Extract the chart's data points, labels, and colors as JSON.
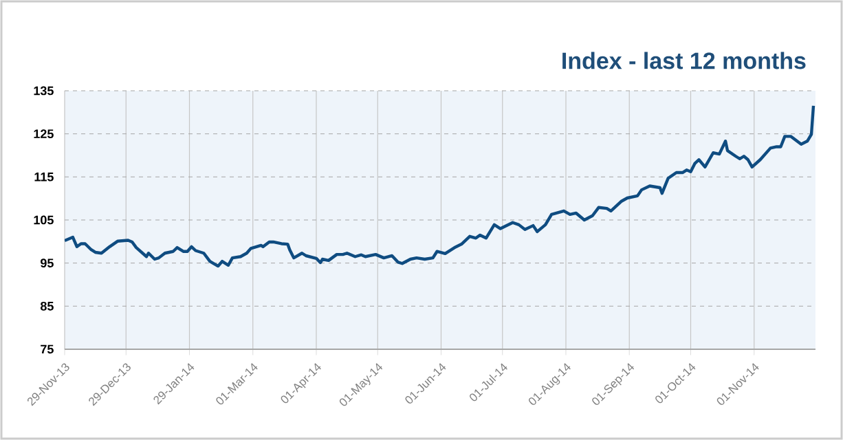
{
  "chart_data": {
    "type": "line",
    "title": "Index - last 12 months",
    "x": [
      "2013-11-29",
      "2013-12-03",
      "2013-12-05",
      "2013-12-07",
      "2013-12-09",
      "2013-12-12",
      "2013-12-14",
      "2013-12-17",
      "2013-12-21",
      "2013-12-25",
      "2013-12-30",
      "2014-01-01",
      "2014-01-03",
      "2014-01-08",
      "2014-01-09",
      "2014-01-12",
      "2014-01-14",
      "2014-01-17",
      "2014-01-21",
      "2014-01-23",
      "2014-01-26",
      "2014-01-28",
      "2014-01-30",
      "2014-02-01",
      "2014-02-05",
      "2014-02-08",
      "2014-02-12",
      "2014-02-14",
      "2014-02-17",
      "2014-02-19",
      "2014-02-23",
      "2014-02-26",
      "2014-02-28",
      "2014-03-05",
      "2014-03-06",
      "2014-03-09",
      "2014-03-11",
      "2014-03-15",
      "2014-03-18",
      "2014-03-19",
      "2014-03-21",
      "2014-03-25",
      "2014-03-27",
      "2014-04-01",
      "2014-04-03",
      "2014-04-04",
      "2014-04-07",
      "2014-04-11",
      "2014-04-14",
      "2014-04-16",
      "2014-04-20",
      "2014-04-23",
      "2014-04-25",
      "2014-04-30",
      "2014-05-04",
      "2014-05-08",
      "2014-05-11",
      "2014-05-13",
      "2014-05-17",
      "2014-05-20",
      "2014-05-24",
      "2014-05-28",
      "2014-05-30",
      "2014-06-03",
      "2014-06-08",
      "2014-06-11",
      "2014-06-15",
      "2014-06-18",
      "2014-06-20",
      "2014-06-23",
      "2014-06-27",
      "2014-06-30",
      "2014-07-06",
      "2014-07-09",
      "2014-07-12",
      "2014-07-16",
      "2014-07-18",
      "2014-07-22",
      "2014-07-25",
      "2014-07-31",
      "2014-08-03",
      "2014-08-06",
      "2014-08-10",
      "2014-08-14",
      "2014-08-17",
      "2014-08-21",
      "2014-08-23",
      "2014-08-28",
      "2014-08-31",
      "2014-09-05",
      "2014-09-07",
      "2014-09-11",
      "2014-09-16",
      "2014-09-17",
      "2014-09-20",
      "2014-09-24",
      "2014-09-27",
      "2014-09-29",
      "2014-10-01",
      "2014-10-03",
      "2014-10-05",
      "2014-10-08",
      "2014-10-12",
      "2014-10-15",
      "2014-10-18",
      "2014-10-19",
      "2014-10-23",
      "2014-10-25",
      "2014-10-27",
      "2014-10-29",
      "2014-10-31",
      "2014-11-04",
      "2014-11-09",
      "2014-11-12",
      "2014-11-14",
      "2014-11-16",
      "2014-11-19",
      "2014-11-22",
      "2014-11-24",
      "2014-11-27",
      "2014-11-29",
      "2014-11-30"
    ],
    "series": [
      {
        "color": "#0f4c81",
        "values": [
          100.2,
          101.0,
          98.8,
          99.5,
          99.5,
          98.1,
          97.5,
          97.3,
          98.8,
          100.1,
          100.3,
          99.9,
          98.6,
          96.5,
          97.3,
          95.9,
          96.2,
          97.3,
          97.7,
          98.6,
          97.7,
          97.7,
          98.8,
          97.9,
          97.3,
          95.4,
          94.3,
          95.4,
          94.5,
          96.2,
          96.5,
          97.3,
          98.4,
          99.1,
          98.8,
          99.9,
          99.9,
          99.5,
          99.4,
          98.1,
          96.2,
          97.3,
          96.7,
          96.1,
          95.1,
          95.9,
          95.6,
          97.0,
          97.0,
          97.3,
          96.5,
          96.9,
          96.5,
          97.0,
          96.2,
          96.7,
          95.2,
          94.9,
          95.9,
          96.2,
          95.9,
          96.2,
          97.7,
          97.2,
          98.7,
          99.4,
          101.2,
          100.8,
          101.5,
          100.8,
          103.9,
          103.0,
          104.4,
          103.9,
          102.8,
          103.7,
          102.3,
          103.9,
          106.3,
          107.1,
          106.3,
          106.6,
          105.0,
          106.0,
          107.9,
          107.7,
          107.1,
          109.3,
          110.1,
          110.6,
          112.0,
          112.9,
          112.5,
          111.2,
          114.7,
          116.0,
          116.0,
          116.6,
          116.2,
          118.1,
          119.0,
          117.3,
          120.6,
          120.3,
          123.3,
          121.1,
          119.8,
          119.2,
          119.8,
          119.0,
          117.3,
          119.0,
          121.7,
          122.0,
          122.0,
          124.4,
          124.4,
          123.3,
          122.6,
          123.3,
          124.9,
          131.5
        ]
      }
    ],
    "xlim": [
      "2013-11-29",
      "2014-12-01"
    ],
    "xticks": [
      {
        "value": "2013-11-29",
        "label": "29-Nov-13"
      },
      {
        "value": "2013-12-29",
        "label": "29-Dec-13"
      },
      {
        "value": "2014-01-29",
        "label": "29-Jan-14"
      },
      {
        "value": "2014-03-01",
        "label": "01-Mar-14"
      },
      {
        "value": "2014-04-01",
        "label": "01-Apr-14"
      },
      {
        "value": "2014-05-01",
        "label": "01-May-14"
      },
      {
        "value": "2014-06-01",
        "label": "01-Jun-14"
      },
      {
        "value": "2014-07-01",
        "label": "01-Jul-14"
      },
      {
        "value": "2014-08-01",
        "label": "01-Aug-14"
      },
      {
        "value": "2014-09-01",
        "label": "01-Sep-14"
      },
      {
        "value": "2014-10-01",
        "label": "01-Oct-14"
      },
      {
        "value": "2014-11-01",
        "label": "01-Nov-14"
      }
    ],
    "ylim": [
      75,
      135
    ],
    "yticks": [
      75,
      85,
      95,
      105,
      115,
      125,
      135
    ],
    "grid": true
  }
}
